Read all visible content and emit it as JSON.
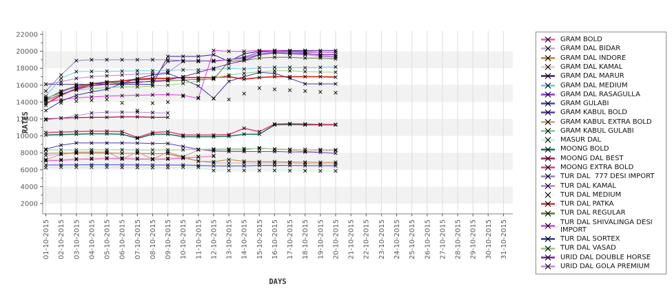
{
  "chart_data": {
    "type": "line",
    "title": "",
    "xlabel": "DAYS",
    "ylabel": "RATES",
    "legend_position": "right",
    "grid": true,
    "background_bands": "alternating gray bands every 2000 units (2000-4000, 6000-8000, 10000-12000, 14000-16000, 18000-20000 are gray)",
    "x_categories": [
      "01-10-2015",
      "02-10-2015",
      "03-10-2015",
      "04-10-2015",
      "05-10-2015",
      "06-10-2015",
      "07-10-2015",
      "08-10-2015",
      "09-10-2015",
      "10-10-2015",
      "11-10-2015",
      "12-10-2015",
      "13-10-2015",
      "14-10-2015",
      "15-10-2015",
      "16-10-2015",
      "17-10-2015",
      "18-10-2015",
      "19-10-2015",
      "20-10-2015",
      "21-10-2015",
      "22-10-2015",
      "23-10-2015",
      "24-10-2015",
      "25-10-2015",
      "26-10-2015",
      "27-10-2015",
      "28-10-2015",
      "29-10-2015",
      "30-10-2015",
      "31-10-2015"
    ],
    "y_ticks": [
      2000,
      4000,
      6000,
      8000,
      10000,
      12000,
      14000,
      16000,
      18000,
      20000,
      22000
    ],
    "ylim": [
      900,
      22400
    ],
    "marker": "x",
    "series": [
      {
        "name": "GRAM BOLD",
        "color": "#F24CC5",
        "values": [
          7050,
          7100,
          7200,
          7250,
          7300,
          7300,
          7250,
          7200,
          7250,
          7350,
          7500,
          7600
        ]
      },
      {
        "name": "GRAM DAL BIDAR",
        "color": "#BBAECC",
        "values": [
          7690,
          7850,
          7930,
          7930,
          7930,
          7930,
          7930,
          7900,
          7900,
          7370,
          7040,
          6800,
          6800,
          6800,
          6800,
          6800,
          6800,
          6750,
          6720,
          6700
        ]
      },
      {
        "name": "GRAM DAL INDORE",
        "color": "#C87A28",
        "values": [
          7950,
          7980,
          8000,
          8000,
          8000,
          7950,
          7950,
          7900,
          7900,
          7500,
          7000,
          6950,
          7200,
          7000,
          6950,
          6950,
          6900,
          6900,
          6880,
          6880
        ]
      },
      {
        "name": "GRAM DAL KAMAL",
        "color": "#E8C2CC",
        "values": [
          7150,
          7200,
          7300,
          7350,
          7400,
          7400,
          7350,
          7300,
          7350,
          7450,
          7550,
          7650
        ]
      },
      {
        "name": "GRAM DAL MARUR",
        "color": "#3A2080",
        "values": [
          16100,
          16100,
          16100,
          16100,
          16100,
          16100,
          16100,
          16100,
          19400,
          19400,
          19400,
          19600,
          18800,
          19700,
          20000,
          20100,
          20100,
          20100,
          20100,
          20100
        ]
      },
      {
        "name": "GRAM DAL MEDIUM",
        "color": "#5FC8E6",
        "values": [
          14700,
          16800,
          17600,
          17620,
          17650,
          17650,
          17700,
          17700,
          17750,
          17800,
          17800,
          17850,
          18000,
          17900,
          18050,
          18100,
          18100,
          18050,
          18100,
          18150
        ]
      },
      {
        "name": "GRAM DAL RASAGULLA",
        "color": "#8A2BE2",
        "values": [
          14400,
          15200,
          15800,
          16200,
          16400,
          16500,
          16600,
          16700,
          18800,
          18900,
          18900,
          18800,
          19000,
          19300,
          19900,
          20000,
          19950,
          19900,
          19900,
          19900
        ]
      },
      {
        "name": "GRAM GULABI",
        "color": "#3341D4",
        "values": [
          6550,
          6560,
          6570,
          6580,
          6580,
          6570,
          6560,
          6550,
          6550,
          6560,
          6500,
          6450,
          6450,
          6450,
          6500,
          6500,
          6500,
          6480,
          6470,
          6460
        ]
      },
      {
        "name": "GRAM KABUL BOLD",
        "color": "#4B34C0",
        "values": [
          8430,
          8900,
          9160,
          9160,
          9160,
          9160,
          9150,
          9100,
          9100,
          8750,
          8400,
          8200,
          8150,
          8150,
          8150,
          8150,
          8100,
          8100,
          8050,
          7950
        ]
      },
      {
        "name": "GRAM KABUL EXTRA BOLD",
        "color": "#C8977F",
        "values": [
          7200,
          7800,
          8100,
          8100,
          8100,
          7250,
          8100,
          7250,
          8100,
          7530,
          8340,
          8340,
          8340,
          8340,
          8590,
          8400,
          8350,
          8180,
          8260,
          8260
        ]
      },
      {
        "name": "GRAM KABUL GULABI",
        "color": "#7FC98B",
        "values": [
          8340,
          8340,
          8340,
          8350,
          8350,
          8350,
          8340,
          8330,
          8340,
          8350,
          8400,
          8450,
          8450,
          8500,
          8500,
          8450,
          8400,
          8400,
          8380,
          8350
        ]
      },
      {
        "name": "MASUR DAL",
        "color": "#C8EBD5",
        "values": [
          6250,
          6300,
          6300,
          6300,
          6300,
          6280,
          6260,
          6250,
          6250,
          6300,
          6300,
          5900,
          5900,
          5900,
          5900,
          5900,
          5880,
          5870,
          5860,
          5850
        ]
      },
      {
        "name": "MOONG BOLD",
        "color": "#0B6E4F",
        "values": [
          10100,
          10150,
          10200,
          10250,
          10250,
          10200,
          9700,
          10200,
          10200,
          9900,
          9900,
          9900,
          9950,
          10200,
          10200,
          11300,
          11350,
          11300,
          11300,
          11300
        ]
      },
      {
        "name": "MOONG DAL BEST",
        "color": "#A81456",
        "values": [
          12000,
          12100,
          12150,
          12200,
          12200,
          12250,
          12250,
          12200,
          12200
        ]
      },
      {
        "name": "MOONG EXTRA BOLD",
        "color": "#E8336E",
        "values": [
          10400,
          10450,
          10500,
          10550,
          10550,
          10500,
          9800,
          10400,
          10500,
          10100,
          10100,
          10100,
          10150,
          10900,
          10500,
          11400,
          11450,
          11400,
          11350,
          11350
        ]
      },
      {
        "name": "TUR DAL  777 DESI IMPORT",
        "color": "#9180C4",
        "values": [
          15300,
          17200,
          18900,
          19000,
          19000,
          19000,
          19000,
          19000,
          19000,
          18900,
          18900,
          18900,
          19000,
          19200,
          19700,
          19900,
          19800,
          19800,
          19500,
          19400
        ]
      },
      {
        "name": "TUR DAL KAMAL",
        "color": "#BC7BD9",
        "values": [
          16100,
          16400,
          16800,
          17000,
          17100,
          17200,
          17300,
          17400,
          17500,
          18800,
          18800,
          18900,
          19000,
          19100,
          19600,
          19800,
          19700,
          19600,
          19400,
          19300
        ]
      },
      {
        "name": "TUR DAL MEDIUM",
        "color": "#F6F6E8",
        "values": [
          13600,
          13900,
          14100,
          14200,
          14300,
          13900,
          13000,
          13870,
          14000,
          14680,
          14500,
          14400,
          14300,
          15000,
          15660,
          15500,
          15400,
          15300,
          15200,
          15100
        ]
      },
      {
        "name": "TUR DAL PATKA",
        "color": "#D92B21",
        "values": [
          13800,
          14800,
          15600,
          16100,
          16300,
          16500,
          16700,
          16800,
          16800,
          16900,
          16900,
          16900,
          17000,
          16700,
          16900,
          17000,
          17000,
          17000,
          17000,
          16950
        ]
      },
      {
        "name": "TUR DAL REGULAR",
        "color": "#4F7A28",
        "values": [
          14300,
          15300,
          15900,
          16200,
          16300,
          16300,
          16400,
          16400,
          16500,
          16600,
          16700,
          16700,
          18800,
          18900,
          19200,
          19300,
          19300,
          19200,
          19200,
          19100
        ]
      },
      {
        "name": "TUR DAL SHIVALINGA DESI IMPORT",
        "color": "#E336E3",
        "values": [
          14000,
          14300,
          14500,
          14600,
          14700,
          14750,
          14800,
          14850,
          14900,
          14800,
          14440,
          20100,
          20000,
          20000,
          20100,
          20100,
          20000,
          20000,
          19900,
          19900
        ]
      },
      {
        "name": "TUR DAL SORTEX",
        "color": "#2F3699",
        "values": [
          13000,
          14100,
          14800,
          15200,
          15500,
          16200,
          16800,
          17200,
          17400,
          16700,
          15900,
          14440,
          16450,
          17000,
          17500,
          17400,
          16800,
          16150,
          16150,
          16150
        ]
      },
      {
        "name": "TUR DAL VASAD",
        "color": "#8CC87B",
        "values": [
          14500,
          15000,
          15400,
          15600,
          15700,
          15800,
          15800,
          15900,
          16000,
          16200,
          16500,
          16800,
          17200,
          17400,
          17600,
          17700,
          17700,
          17600,
          17550,
          17530
        ]
      },
      {
        "name": "URID DAL DOUBLE HORSE",
        "color": "#7A15B0",
        "values": [
          14200,
          14900,
          15500,
          15900,
          16100,
          16200,
          16300,
          16500,
          16600,
          17000,
          17500,
          18000,
          18500,
          18900,
          19600,
          19800,
          19700,
          19700,
          19600,
          19600
        ]
      },
      {
        "name": "URID DAL GOLA PREMIUM",
        "color": "#B48CD9",
        "values": [
          11900,
          12100,
          12400,
          12700,
          12800,
          12800,
          12800,
          12750,
          12700
        ]
      }
    ]
  }
}
